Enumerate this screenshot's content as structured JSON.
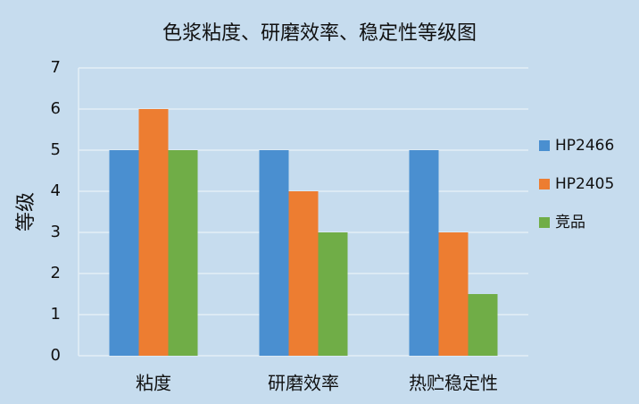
{
  "chart_data": {
    "type": "bar",
    "title": "色浆粘度、研磨效率、稳定性等级图",
    "y_label": "等级",
    "categories": [
      "粘度",
      "研磨效率",
      "热贮稳定性"
    ],
    "series": [
      {
        "name": "HP2466",
        "color": "#4a8fd0",
        "values": [
          5,
          5,
          5
        ]
      },
      {
        "name": "HP2405",
        "color": "#ed7d31",
        "values": [
          6,
          4,
          3
        ]
      },
      {
        "name": "竞品",
        "color": "#70ad47",
        "values": [
          5,
          3,
          1.5
        ]
      }
    ],
    "ylim": [
      0,
      7
    ],
    "yticks": [
      0,
      1,
      2,
      3,
      4,
      5,
      6,
      7
    ],
    "grid": true,
    "legend": "right"
  }
}
